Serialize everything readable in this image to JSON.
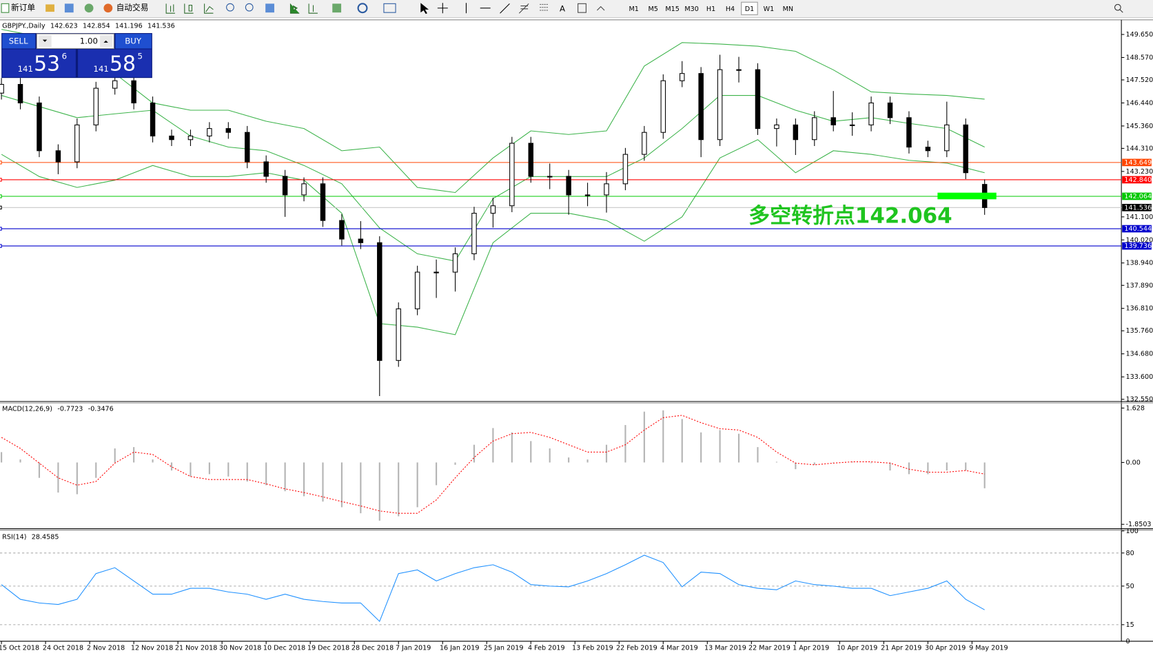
{
  "toolbar": {
    "new_order": "新订单",
    "auto_trading": "自动交易",
    "timeframes": [
      "M1",
      "M5",
      "M15",
      "M30",
      "H1",
      "H4",
      "D1",
      "W1",
      "MN"
    ]
  },
  "trade_panel": {
    "sell": "SELL",
    "buy": "BUY",
    "volume": "1.00",
    "bid": {
      "big": "141",
      "main": "53",
      "pip": "6"
    },
    "ask": {
      "big": "141",
      "main": "58",
      "pip": "5"
    }
  },
  "chart_data": [
    {
      "type": "candlestick",
      "title": "GBPJPY.,Daily",
      "x": [
        0,
        3,
        6,
        9,
        12,
        15,
        18,
        21,
        24,
        27,
        30,
        33,
        36,
        39,
        42,
        45,
        48,
        51,
        54,
        57,
        60,
        63,
        66,
        69,
        72,
        75,
        78,
        81,
        84,
        87,
        90,
        93,
        96,
        99,
        102,
        105,
        108,
        111,
        114,
        117,
        120,
        123,
        126,
        129,
        132,
        135,
        138,
        141,
        144,
        147,
        150,
        153,
        156
      ],
      "open": [
        146.9,
        147.31,
        146.44,
        144.2,
        143.68,
        145.41,
        147.13,
        147.48,
        146.44,
        144.89,
        144.72,
        144.89,
        145.24,
        145.06,
        143.68,
        143.0,
        142.13,
        142.65,
        140.93,
        140.06,
        139.89,
        134.37,
        136.79,
        138.51,
        138.51,
        139.37,
        141.27,
        141.62,
        144.55,
        143.0,
        143.0,
        142.13,
        142.13,
        142.65,
        144.03,
        145.06,
        147.48,
        147.82,
        144.72,
        148.0,
        148.0,
        145.24,
        145.41,
        144.72,
        145.75,
        145.41,
        145.41,
        146.44,
        145.75,
        144.37,
        144.2,
        145.41,
        142.623
      ],
      "high": [
        147.61,
        147.61,
        146.74,
        144.5,
        145.71,
        147.43,
        147.78,
        147.78,
        146.74,
        145.19,
        145.19,
        145.54,
        145.54,
        145.36,
        143.98,
        143.3,
        142.95,
        142.95,
        141.23,
        140.9,
        140.19,
        137.09,
        138.81,
        139.1,
        139.67,
        141.57,
        142.0,
        144.85,
        144.85,
        143.6,
        143.3,
        142.7,
        143.2,
        144.33,
        145.36,
        147.78,
        148.4,
        148.12,
        148.7,
        148.6,
        148.3,
        145.71,
        145.71,
        146.05,
        147.0,
        146.0,
        146.74,
        146.74,
        146.05,
        144.67,
        146.5,
        145.71,
        142.854
      ],
      "low": [
        146.6,
        146.14,
        143.9,
        143.1,
        143.38,
        145.11,
        146.83,
        146.14,
        144.59,
        144.42,
        144.42,
        144.59,
        144.76,
        143.38,
        142.7,
        141.1,
        141.83,
        140.63,
        139.76,
        139.59,
        132.7,
        134.07,
        136.49,
        137.3,
        137.6,
        139.07,
        140.6,
        141.32,
        142.7,
        142.4,
        141.2,
        141.6,
        141.3,
        142.35,
        143.73,
        144.76,
        147.18,
        143.9,
        144.42,
        147.4,
        144.94,
        144.4,
        144.0,
        144.42,
        145.11,
        144.9,
        145.11,
        145.45,
        144.07,
        143.9,
        143.9,
        142.87,
        141.196
      ],
      "close": [
        147.31,
        146.44,
        144.2,
        143.68,
        145.41,
        147.13,
        147.48,
        146.44,
        144.89,
        144.72,
        144.89,
        145.24,
        145.06,
        143.68,
        143.0,
        142.13,
        142.65,
        140.93,
        140.06,
        139.89,
        134.37,
        136.79,
        138.51,
        138.51,
        139.37,
        141.27,
        141.62,
        144.55,
        143.0,
        143.0,
        142.13,
        142.13,
        142.65,
        144.03,
        145.06,
        147.48,
        147.82,
        144.72,
        148.0,
        148.0,
        145.24,
        145.41,
        144.72,
        145.75,
        145.41,
        145.41,
        146.44,
        145.75,
        144.37,
        144.2,
        145.41,
        143.17,
        141.536
      ],
      "xlim": [
        -0.23,
        177.7
      ],
      "xticks": [
        {
          "value": 0,
          "label": "15 Oct 2018"
        },
        {
          "value": 7,
          "label": "24 Oct 2018"
        },
        {
          "value": 14,
          "label": "2 Nov 2018"
        },
        {
          "value": 21,
          "label": "12 Nov 2018"
        },
        {
          "value": 28,
          "label": "21 Nov 2018"
        },
        {
          "value": 35,
          "label": "30 Nov 2018"
        },
        {
          "value": 42,
          "label": "10 Dec 2018"
        },
        {
          "value": 49,
          "label": "19 Dec 2018"
        },
        {
          "value": 56,
          "label": "28 Dec 2018"
        },
        {
          "value": 63,
          "label": "7 Jan 2019"
        },
        {
          "value": 70,
          "label": "16 Jan 2019"
        },
        {
          "value": 77,
          "label": "25 Jan 2019"
        },
        {
          "value": 84,
          "label": "4 Feb 2019"
        },
        {
          "value": 91,
          "label": "13 Feb 2019"
        },
        {
          "value": 98,
          "label": "22 Feb 2019"
        },
        {
          "value": 105,
          "label": "4 Mar 2019"
        },
        {
          "value": 112,
          "label": "13 Mar 2019"
        },
        {
          "value": 119,
          "label": "22 Mar 2019"
        },
        {
          "value": 126,
          "label": "1 Apr 2019"
        },
        {
          "value": 133,
          "label": "10 Apr 2019"
        },
        {
          "value": 140,
          "label": "21 Apr 2019"
        },
        {
          "value": 147,
          "label": "30 Apr 2019"
        },
        {
          "value": 154,
          "label": "9 May 2019"
        }
      ],
      "ylim": [
        132.48,
        150.3
      ],
      "yticks": [
        {
          "value": 149.65,
          "label": "149.650"
        },
        {
          "value": 148.57,
          "label": "148.570"
        },
        {
          "value": 147.52,
          "label": "147.520"
        },
        {
          "value": 146.44,
          "label": "146.440"
        },
        {
          "value": 145.36,
          "label": "145.360"
        },
        {
          "value": 144.31,
          "label": "144.310"
        },
        {
          "value": 143.23,
          "label": "143.230"
        },
        {
          "value": 141.1,
          "label": "141.100"
        },
        {
          "value": 140.02,
          "label": "140.020"
        },
        {
          "value": 138.94,
          "label": "138.940"
        },
        {
          "value": 137.89,
          "label": "137.890"
        },
        {
          "value": 136.81,
          "label": "136.810"
        },
        {
          "value": 135.76,
          "label": "135.760"
        },
        {
          "value": 134.68,
          "label": "134.680"
        },
        {
          "value": 133.6,
          "label": "133.600"
        },
        {
          "value": 132.55,
          "label": "132.550"
        }
      ],
      "bollinger": {
        "color": "#3cb34a",
        "x": [
          0,
          6,
          12,
          18,
          24,
          30,
          36,
          42,
          48,
          54,
          60,
          66,
          72,
          78,
          84,
          90,
          96,
          102,
          108,
          114,
          120,
          126,
          132,
          138,
          144,
          150,
          156
        ],
        "upper": [
          149.89,
          149.55,
          149.03,
          147.82,
          146.44,
          146.1,
          146.1,
          145.58,
          145.24,
          144.2,
          144.37,
          142.48,
          142.24,
          143.86,
          145.13,
          144.96,
          145.13,
          148.17,
          149.27,
          149.2,
          149.1,
          148.86,
          147.99,
          146.96,
          146.86,
          146.79,
          146.62
        ],
        "middle": [
          146.79,
          146.27,
          145.75,
          145.93,
          146.1,
          144.89,
          144.37,
          144.2,
          143.51,
          142.65,
          140.58,
          139.37,
          139.03,
          141.96,
          142.99,
          142.99,
          142.99,
          143.86,
          145.24,
          146.79,
          146.79,
          146.1,
          145.58,
          145.75,
          145.48,
          145.24,
          144.37
        ],
        "lower": [
          144.03,
          142.99,
          142.48,
          142.82,
          143.51,
          142.99,
          142.99,
          143.17,
          142.82,
          141.27,
          136.1,
          135.93,
          135.58,
          139.89,
          141.27,
          141.27,
          140.93,
          139.96,
          141.1,
          143.86,
          144.72,
          143.17,
          144.2,
          144.03,
          143.75,
          143.62,
          143.17
        ]
      },
      "levels": [
        {
          "value": 143.649,
          "color": "#ff4500"
        },
        {
          "value": 142.84,
          "label": "142.840",
          "color": "#ff0000"
        },
        {
          "value": 142.064,
          "color": "#00c800"
        },
        {
          "value": 141.536,
          "color": "#000000",
          "line_color": "#c8c8c8"
        },
        {
          "value": 140.544,
          "color": "#0000cd"
        },
        {
          "value": 139.736,
          "color": "#0000cd"
        }
      ],
      "annotation": {
        "text": "多空转折点142.064",
        "color": "#1fc41f"
      }
    },
    {
      "type": "macd",
      "title": "MACD(12,26,9)",
      "ylim": [
        -1.96,
        1.78
      ],
      "yticks": [
        1.628,
        {
          "value": 0,
          "label": "0.00"
        },
        -1.8503
      ],
      "histogram": {
        "color": "#b4b4b4",
        "values": [
          0.31,
          0.09,
          -0.46,
          -0.9,
          -0.95,
          -0.46,
          0.42,
          0.46,
          0.09,
          -0.24,
          -0.42,
          -0.35,
          -0.42,
          -0.57,
          -0.68,
          -0.86,
          -1.01,
          -1.17,
          -1.34,
          -1.52,
          -1.74,
          -1.61,
          -1.34,
          -0.68,
          -0.07,
          0.53,
          1.03,
          0.9,
          0.64,
          0.42,
          0.15,
          0.09,
          0.53,
          1.12,
          1.52,
          1.56,
          1.3,
          0.9,
          0.97,
          0.86,
          0.46,
          0.02,
          -0.2,
          -0.07,
          -0.02,
          0.02,
          -0.02,
          -0.24,
          -0.35,
          -0.35,
          -0.24,
          -0.24,
          -0.7723
        ]
      },
      "signal": {
        "color": "#ff0000",
        "values": [
          0.75,
          0.42,
          -0.02,
          -0.46,
          -0.68,
          -0.57,
          -0.02,
          0.31,
          0.24,
          -0.13,
          -0.42,
          -0.51,
          -0.51,
          -0.51,
          -0.64,
          -0.79,
          -0.9,
          -1.03,
          -1.17,
          -1.3,
          -1.45,
          -1.52,
          -1.52,
          -1.12,
          -0.46,
          0.15,
          0.64,
          0.86,
          0.9,
          0.75,
          0.53,
          0.31,
          0.31,
          0.53,
          0.97,
          1.34,
          1.41,
          1.19,
          1.01,
          0.97,
          0.75,
          0.31,
          -0.02,
          -0.07,
          -0.02,
          0.02,
          0.02,
          -0.02,
          -0.2,
          -0.29,
          -0.29,
          -0.24,
          -0.3476
        ]
      }
    },
    {
      "type": "rsi",
      "title": "RSI(14)",
      "ylim": [
        0,
        100
      ],
      "yticks": [
        100,
        80,
        50,
        15,
        0
      ],
      "grid": true,
      "color": "#1e90ff",
      "values": [
        51.3,
        38.0,
        34.7,
        33.3,
        38.0,
        61.3,
        66.7,
        54.7,
        42.7,
        42.7,
        48.0,
        48.0,
        44.7,
        42.7,
        38.0,
        42.7,
        38.0,
        36.0,
        34.7,
        34.7,
        18.0,
        61.3,
        64.7,
        54.7,
        61.3,
        66.7,
        69.3,
        62.7,
        51.3,
        50.0,
        49.3,
        54.7,
        61.3,
        69.3,
        78.0,
        71.3,
        49.3,
        62.7,
        61.3,
        51.3,
        48.0,
        46.7,
        54.7,
        51.3,
        50.0,
        48.0,
        48.0,
        41.3,
        44.7,
        48.0,
        54.7,
        38.0,
        28.4585
      ]
    }
  ]
}
